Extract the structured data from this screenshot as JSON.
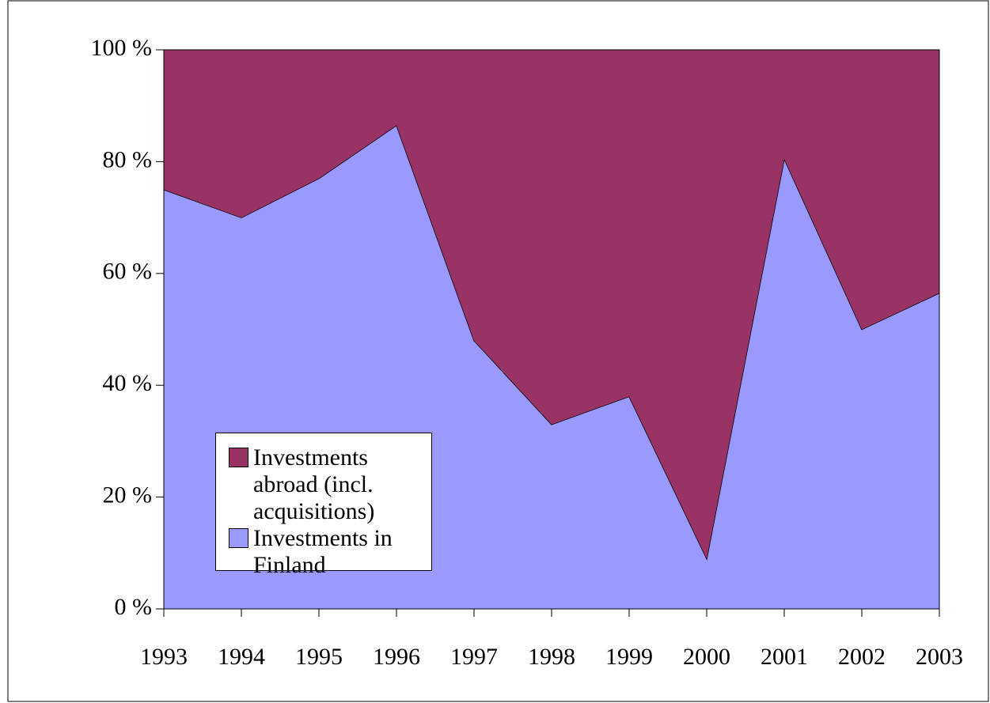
{
  "chart_data": {
    "type": "stacked-area",
    "categories": [
      "1993",
      "1994",
      "1995",
      "1996",
      "1997",
      "1998",
      "1999",
      "2000",
      "2001",
      "2002",
      "2003"
    ],
    "series": [
      {
        "name": "Investments in Finland",
        "color": "#9999ff",
        "values": [
          75,
          70,
          77,
          86.5,
          48,
          33,
          38,
          9,
          80.5,
          50,
          56.5
        ]
      },
      {
        "name": "Investments abroad (incl. acquisitions)",
        "color": "#993366",
        "values": [
          25,
          30,
          23,
          13.5,
          52,
          67,
          62,
          91,
          19.5,
          50,
          43.5
        ]
      }
    ],
    "ylim": [
      0,
      100
    ],
    "yticks": [
      {
        "value": 0,
        "label": "0 %"
      },
      {
        "value": 20,
        "label": "20 %"
      },
      {
        "value": 40,
        "label": "40 %"
      },
      {
        "value": 60,
        "label": "60 %"
      },
      {
        "value": 80,
        "label": "80 %"
      },
      {
        "value": 100,
        "label": "100 %"
      }
    ],
    "legend": "lower left"
  }
}
